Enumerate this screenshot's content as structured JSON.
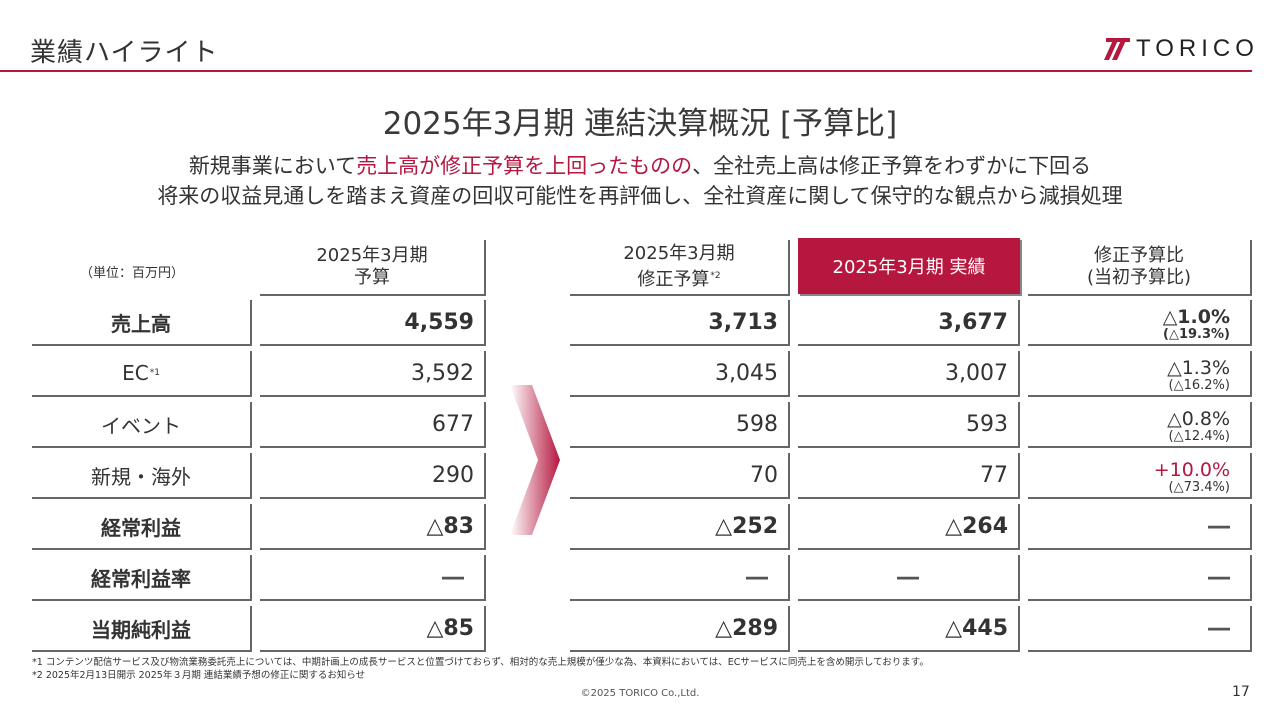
{
  "header": {
    "title": "業績ハイライト",
    "logo_text": "TORICO"
  },
  "slide_title": "2025年3月期 連結決算概況 [予算比]",
  "subtitle": {
    "line1_highlight": "売上高が修正予算を上回ったものの",
    "line1_pre": "新規事業において",
    "line1_post": "、全社売上高は修正予算をわずかに下回る",
    "line2": "将来の収益見通しを踏まえ資産の回収可能性を再評価し、全社資産に関して保守的な観点から減損処理"
  },
  "table": {
    "unit": "（単位：百万円）",
    "headers": {
      "budget_l1": "2025年3月期",
      "budget_l2": "予算",
      "revised_l1": "2025年3月期",
      "revised_l2": "修正予算",
      "revised_note": "*2",
      "actual": "2025年3月期 実績",
      "ratio_l1": "修正予算比",
      "ratio_l2": "(当初予算比)"
    },
    "rows": [
      {
        "label": "売上高",
        "note": "",
        "budget": "4,559",
        "revised": "3,713",
        "actual": "3,677",
        "ratio": "△1.0%",
        "ratio_sub": "(△19.3%)"
      },
      {
        "label": "EC",
        "note": "*1",
        "budget": "3,592",
        "revised": "3,045",
        "actual": "3,007",
        "ratio": "△1.3%",
        "ratio_sub": "(△16.2%)"
      },
      {
        "label": "イベント",
        "note": "",
        "budget": "677",
        "revised": "598",
        "actual": "593",
        "ratio": "△0.8%",
        "ratio_sub": "(△12.4%)"
      },
      {
        "label": "新規・海外",
        "note": "",
        "budget": "290",
        "revised": "70",
        "actual": "77",
        "ratio": "+10.0%",
        "ratio_sub": "(△73.4%)"
      },
      {
        "label": "経常利益",
        "note": "",
        "budget": "△83",
        "revised": "△252",
        "actual": "△264",
        "ratio": "―",
        "ratio_sub": ""
      },
      {
        "label": "経常利益率",
        "note": "",
        "budget": "―",
        "revised": "―",
        "actual": "―",
        "ratio": "―",
        "ratio_sub": ""
      },
      {
        "label": "当期純利益",
        "note": "",
        "budget": "△85",
        "revised": "△289",
        "actual": "△445",
        "ratio": "―",
        "ratio_sub": ""
      }
    ]
  },
  "footnotes": {
    "note1": "*1 コンテンツ配信サービス及び物流業務委託売上については、中期計画上の成長サービスと位置づけておらず、相対的な売上規模が僅少な為、本資料においては、ECサービスに同売上を含め開示しております。",
    "note2": "*2 2025年2月13日開示 2025年３月期 連結業績予想の修正に関するお知らせ"
  },
  "footer": {
    "copyright": "©2025 TORICO Co.,Ltd.",
    "page": "17"
  },
  "colors": {
    "accent": "#b5173f"
  }
}
